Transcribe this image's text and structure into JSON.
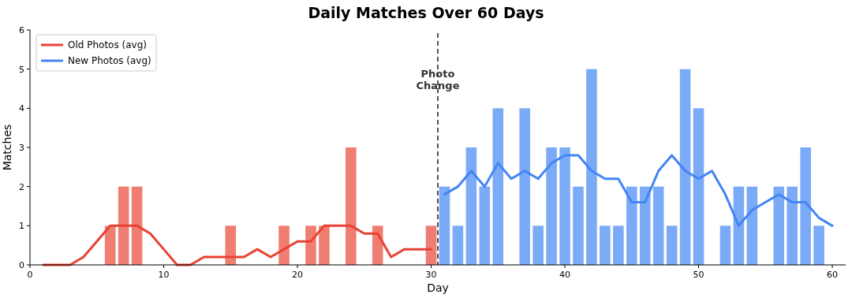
{
  "chart_data": {
    "type": "bar",
    "title": "Daily Matches Over 60 Days",
    "xlabel": "Day",
    "ylabel": "Matches",
    "xlim": [
      0,
      61
    ],
    "xticks": [
      0,
      10,
      20,
      30,
      40,
      50,
      60
    ],
    "ylim": [
      0,
      6
    ],
    "yticks": [
      0,
      1,
      2,
      3,
      4,
      5,
      6
    ],
    "grid": false,
    "legend": "top left",
    "series": [
      {
        "color": "#f07d72",
        "x": [
          1,
          2,
          3,
          4,
          5,
          6,
          7,
          8,
          9,
          10,
          11,
          12,
          13,
          14,
          15,
          16,
          17,
          18,
          19,
          20,
          21,
          22,
          23,
          24,
          25,
          26,
          27,
          28,
          29,
          30
        ],
        "values": [
          0,
          0,
          0,
          0,
          0,
          1,
          2,
          2,
          0,
          0,
          0,
          0,
          0,
          0,
          1,
          0,
          0,
          0,
          1,
          0,
          1,
          1,
          0,
          3,
          0,
          1,
          0,
          0,
          0,
          1
        ]
      },
      {
        "color": "#7baaf7",
        "x": [
          31,
          32,
          33,
          34,
          35,
          36,
          37,
          38,
          39,
          40,
          41,
          42,
          43,
          44,
          45,
          46,
          47,
          48,
          49,
          50,
          51,
          52,
          53,
          54,
          55,
          56,
          57,
          58,
          59,
          60
        ],
        "values": [
          2,
          1,
          3,
          2,
          4,
          0,
          4,
          1,
          3,
          3,
          2,
          5,
          1,
          1,
          2,
          2,
          2,
          1,
          5,
          4,
          0,
          1,
          2,
          2,
          0,
          2,
          2,
          3,
          1,
          0
        ]
      },
      {
        "type": "line",
        "name": "Old Photos (avg)",
        "color": "#e84233",
        "x": [
          1,
          2,
          3,
          4,
          5,
          6,
          7,
          8,
          9,
          10,
          11,
          12,
          13,
          14,
          15,
          16,
          17,
          18,
          19,
          20,
          21,
          22,
          23,
          24,
          25,
          26,
          27,
          28,
          29,
          30
        ],
        "values": [
          0,
          0,
          0,
          0.2,
          0.6,
          1,
          1,
          1,
          0.8,
          0.4,
          0,
          0,
          0.2,
          0.2,
          0.2,
          0.2,
          0.4,
          0.2,
          0.4,
          0.6,
          0.6,
          1,
          1,
          1,
          0.8,
          0.8,
          0.2,
          0.4,
          0.4,
          0.4
        ]
      },
      {
        "type": "line",
        "name": "New Photos (avg)",
        "color": "#4285f4",
        "x": [
          31,
          32,
          33,
          34,
          35,
          36,
          37,
          38,
          39,
          40,
          41,
          42,
          43,
          44,
          45,
          46,
          47,
          48,
          49,
          50,
          51,
          52,
          53,
          54,
          55,
          56,
          57,
          58,
          59,
          60
        ],
        "values": [
          1.8,
          2,
          2.4,
          2,
          2.6,
          2.2,
          2.4,
          2.2,
          2.6,
          2.8,
          2.8,
          2.4,
          2.2,
          2.2,
          1.6,
          1.6,
          2.4,
          2.8,
          2.4,
          2.2,
          2.4,
          1.8,
          1,
          1.4,
          1.6,
          1.8,
          1.6,
          1.6,
          1.2,
          1
        ]
      }
    ],
    "ref_lines": [
      {
        "axis": "x",
        "value": 30.5,
        "label": "Photo Change",
        "color": "#555555",
        "line_style": "dashed"
      }
    ]
  }
}
